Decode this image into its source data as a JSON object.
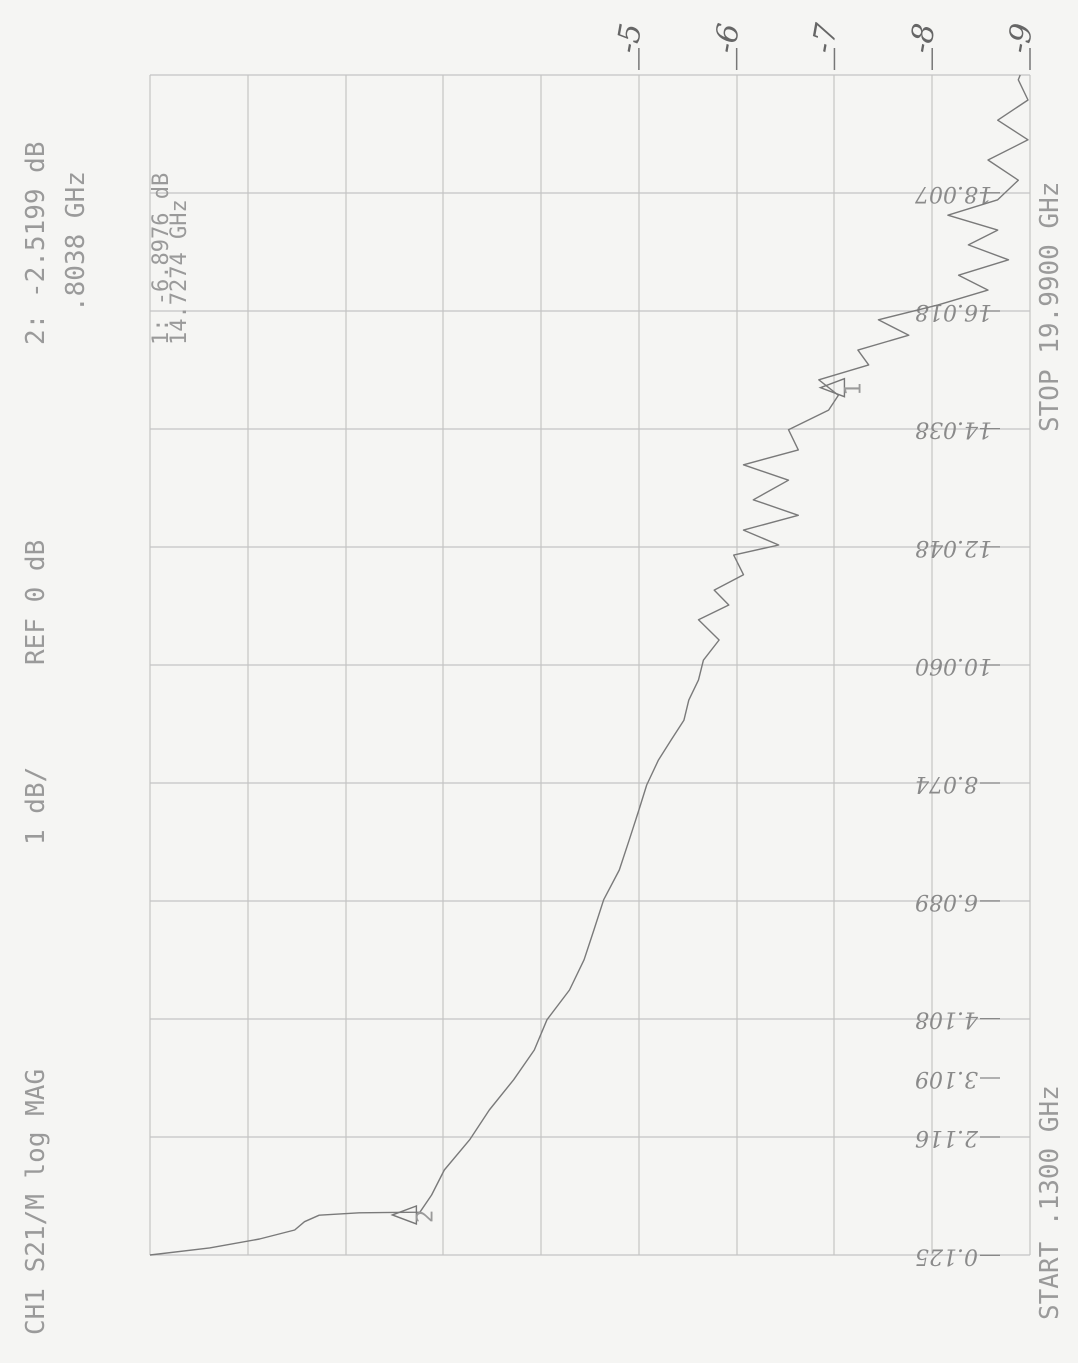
{
  "chart_data": {
    "type": "line",
    "title": "CH1 S21/M log MAG",
    "scale": "1 dB/",
    "reference": "REF 0 dB",
    "marker_readouts": [
      {
        "value": "2: -2.5199 dB",
        "frequency": ".8038 GHz"
      },
      {
        "value": "1: -6.8976 dB",
        "frequency": "14.7274 GHz"
      }
    ],
    "start_label": "START .1300 GHz",
    "stop_label": "STOP 19.9900 GHz",
    "markers": [
      {
        "label": "2",
        "x": 0.8038,
        "value": -2.5199
      },
      {
        "label": "1",
        "x": 14.7274,
        "value": -6.8976
      }
    ],
    "x": [
      0.13,
      0.25,
      0.4,
      0.55,
      0.69,
      0.8,
      0.84,
      0.85,
      1.14,
      1.56,
      2.07,
      2.57,
      3.08,
      3.58,
      4.09,
      4.59,
      5.1,
      5.6,
      6.11,
      6.61,
      7.11,
      7.62,
      8.04,
      8.46,
      8.8,
      9.13,
      9.47,
      9.81,
      10.14,
      10.48,
      10.82,
      11.07,
      11.32,
      11.58,
      11.91,
      12.08,
      12.33,
      12.58,
      12.84,
      13.17,
      13.43,
      13.68,
      14.02,
      14.35,
      14.6,
      14.86,
      15.11,
      15.36,
      15.61,
      15.87,
      16.12,
      16.37,
      16.62,
      16.88,
      17.13,
      17.38,
      17.63,
      17.89,
      18.22,
      18.56,
      18.9,
      19.23,
      19.57,
      19.91,
      19.99
    ],
    "values": [
      0,
      -0.61,
      -1.12,
      -1.48,
      -1.58,
      -1.73,
      -2.14,
      -2.76,
      -2.88,
      -3.01,
      -3.27,
      -3.47,
      -3.72,
      -3.93,
      -4.06,
      -4.29,
      -4.44,
      -4.54,
      -4.64,
      -4.8,
      -4.9,
      -5.0,
      -5.08,
      -5.2,
      -5.33,
      -5.46,
      -5.51,
      -5.61,
      -5.66,
      -5.82,
      -5.61,
      -5.92,
      -5.77,
      -6.07,
      -5.97,
      -6.43,
      -6.07,
      -6.63,
      -6.17,
      -6.53,
      -6.07,
      -6.63,
      -6.53,
      -6.94,
      -7.04,
      -6.84,
      -7.35,
      -7.24,
      -7.76,
      -7.45,
      -8.06,
      -8.57,
      -8.27,
      -8.78,
      -8.37,
      -8.67,
      -8.16,
      -8.67,
      -8.88,
      -8.57,
      -8.98,
      -8.67,
      -8.98,
      -8.88,
      -8.9
    ],
    "color": "#7a7a7a",
    "xlim": [
      0.13,
      19.99
    ],
    "ylim": [
      0,
      -9
    ],
    "yticks": [
      -5,
      -6,
      -7,
      -8,
      -9
    ],
    "xticks": [
      18.007,
      16.018,
      14.038,
      12.048,
      {
        "value": 10.06,
        "label": "10.060"
      },
      8.074,
      6.089,
      4.108,
      3.109,
      2.116,
      0.125
    ]
  }
}
